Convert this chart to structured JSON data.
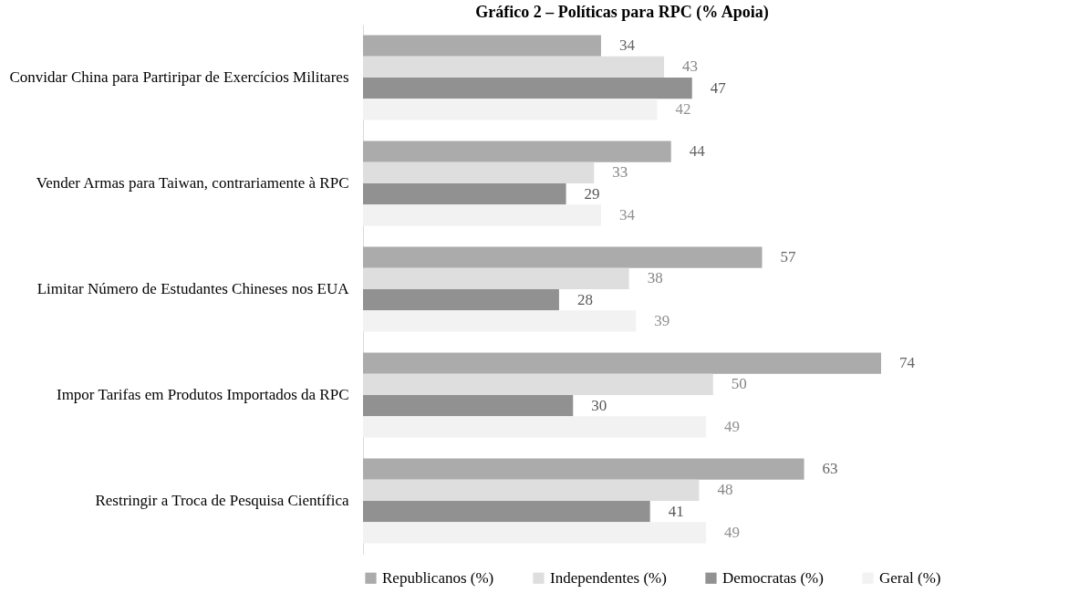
{
  "chart_data": {
    "type": "bar",
    "orientation": "horizontal",
    "title": "Gráfico 2 – Políticas para RPC (% Apoia)",
    "categories": [
      "Convidar China para Partiripar de Exercícios Militares",
      "Vender Armas para Taiwan, contrariamente à RPC",
      "Limitar Número de Estudantes Chineses nos EUA",
      "Impor Tarifas em Produtos Importados da RPC",
      "Restringir a Troca de Pesquisa Científica"
    ],
    "series": [
      {
        "name": "Republicanos (%)",
        "color": "#ababab",
        "values": [
          34,
          44,
          57,
          74,
          63
        ]
      },
      {
        "name": "Independentes (%)",
        "color": "#dedede",
        "values": [
          43,
          33,
          38,
          50,
          48
        ]
      },
      {
        "name": "Democratas (%)",
        "color": "#919191",
        "values": [
          47,
          29,
          28,
          30,
          41
        ]
      },
      {
        "name": "Geral (%)",
        "color": "#f2f2f2",
        "values": [
          42,
          34,
          39,
          49,
          49
        ]
      }
    ],
    "data_labels": true,
    "legend": "bottom",
    "tick_labels": "y"
  }
}
